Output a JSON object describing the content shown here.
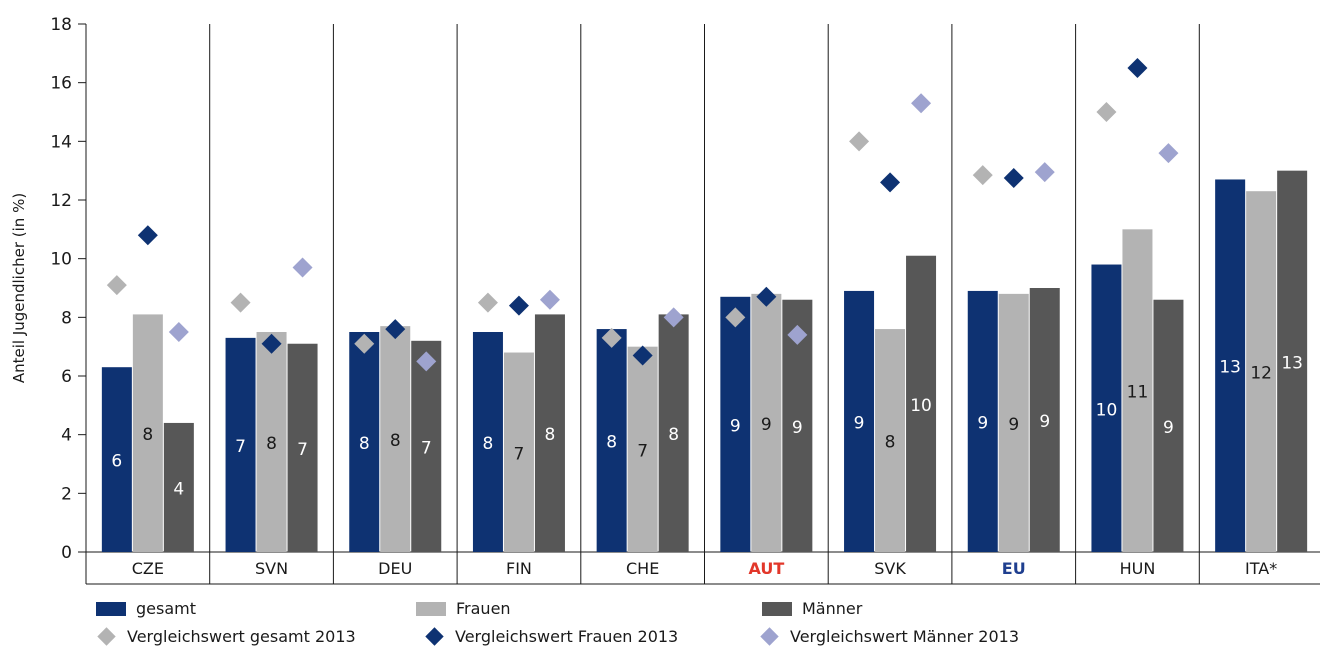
{
  "chart_data": {
    "type": "bar",
    "ylabel": "Anteil Jugendlicher (in %)",
    "ylim": [
      0,
      18
    ],
    "yticks": [
      0,
      2,
      4,
      6,
      8,
      10,
      12,
      14,
      16,
      18
    ],
    "categories": [
      "CZE",
      "SVN",
      "DEU",
      "FIN",
      "CHE",
      "AUT",
      "SVK",
      "EU",
      "HUN",
      "ITA*"
    ],
    "category_label_colors": [
      "#1a1a1a",
      "#1a1a1a",
      "#1a1a1a",
      "#1a1a1a",
      "#1a1a1a",
      "#e2372a",
      "#1a1a1a",
      "#1f3f8f",
      "#1a1a1a",
      "#1a1a1a"
    ],
    "category_label_bold": [
      false,
      false,
      false,
      false,
      false,
      true,
      false,
      true,
      false,
      false
    ],
    "series": [
      {
        "name": "gesamt",
        "color": "#0e3272",
        "label_color": "#ffffff",
        "values": [
          6.3,
          7.3,
          7.5,
          7.5,
          7.6,
          8.7,
          8.9,
          8.9,
          9.8,
          12.7
        ],
        "labels": [
          "6",
          "7",
          "8",
          "8",
          "8",
          "9",
          "9",
          "9",
          "10",
          "13"
        ]
      },
      {
        "name": "Frauen",
        "color": "#b3b3b3",
        "label_color": "#1a1a1a",
        "values": [
          8.1,
          7.5,
          7.7,
          6.8,
          7.0,
          8.8,
          7.6,
          8.8,
          11.0,
          12.3
        ],
        "labels": [
          "8",
          "8",
          "8",
          "7",
          "7",
          "9",
          "8",
          "9",
          "11",
          "12"
        ]
      },
      {
        "name": "Männer",
        "color": "#575757",
        "label_color": "#ffffff",
        "values": [
          4.4,
          7.1,
          7.2,
          8.1,
          8.1,
          8.6,
          10.1,
          9.0,
          8.6,
          13.0
        ],
        "labels": [
          "4",
          "7",
          "7",
          "8",
          "8",
          "9",
          "10",
          "9",
          "9",
          "13"
        ]
      }
    ],
    "markers": [
      {
        "name": "Vergleichswert gesamt 2013",
        "color": "#b3b3b3",
        "values": [
          9.1,
          8.5,
          7.1,
          8.5,
          7.3,
          8.0,
          14.0,
          12.85,
          15.0,
          null
        ]
      },
      {
        "name": "Vergleichswert Frauen 2013",
        "color": "#0e3272",
        "values": [
          10.8,
          7.1,
          7.6,
          8.4,
          6.7,
          8.7,
          12.6,
          12.75,
          16.5,
          null
        ]
      },
      {
        "name": "Vergleichswert Männer 2013",
        "color": "#9ea3cf",
        "values": [
          7.5,
          9.7,
          6.5,
          8.6,
          8.0,
          7.4,
          15.3,
          12.95,
          13.6,
          null
        ]
      }
    ],
    "legend_position": "bottom"
  }
}
